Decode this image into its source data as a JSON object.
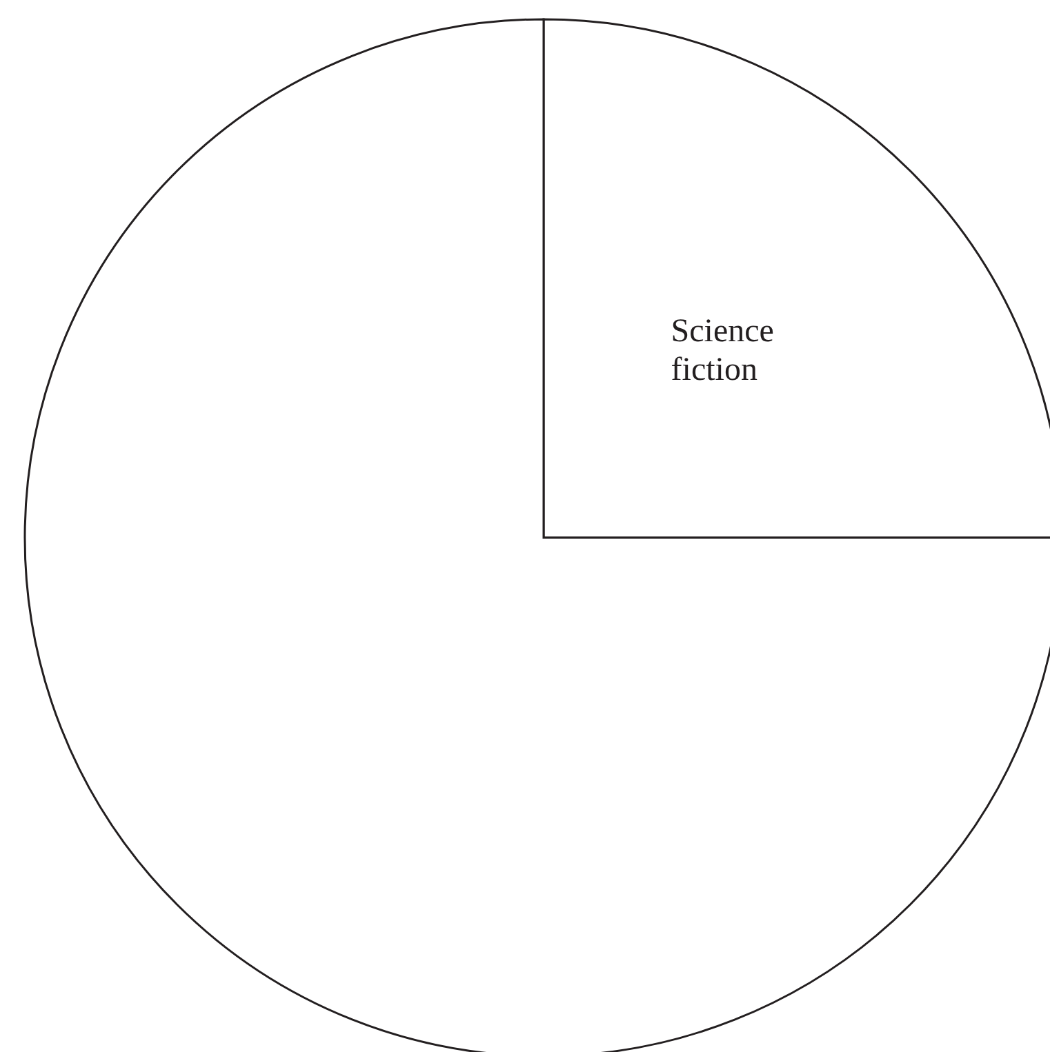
{
  "chart_data": {
    "type": "pie",
    "categories": [
      "Science fiction",
      null
    ],
    "values": [
      25,
      75
    ],
    "colors": [
      "#ffffff",
      "#ffffff"
    ]
  }
}
